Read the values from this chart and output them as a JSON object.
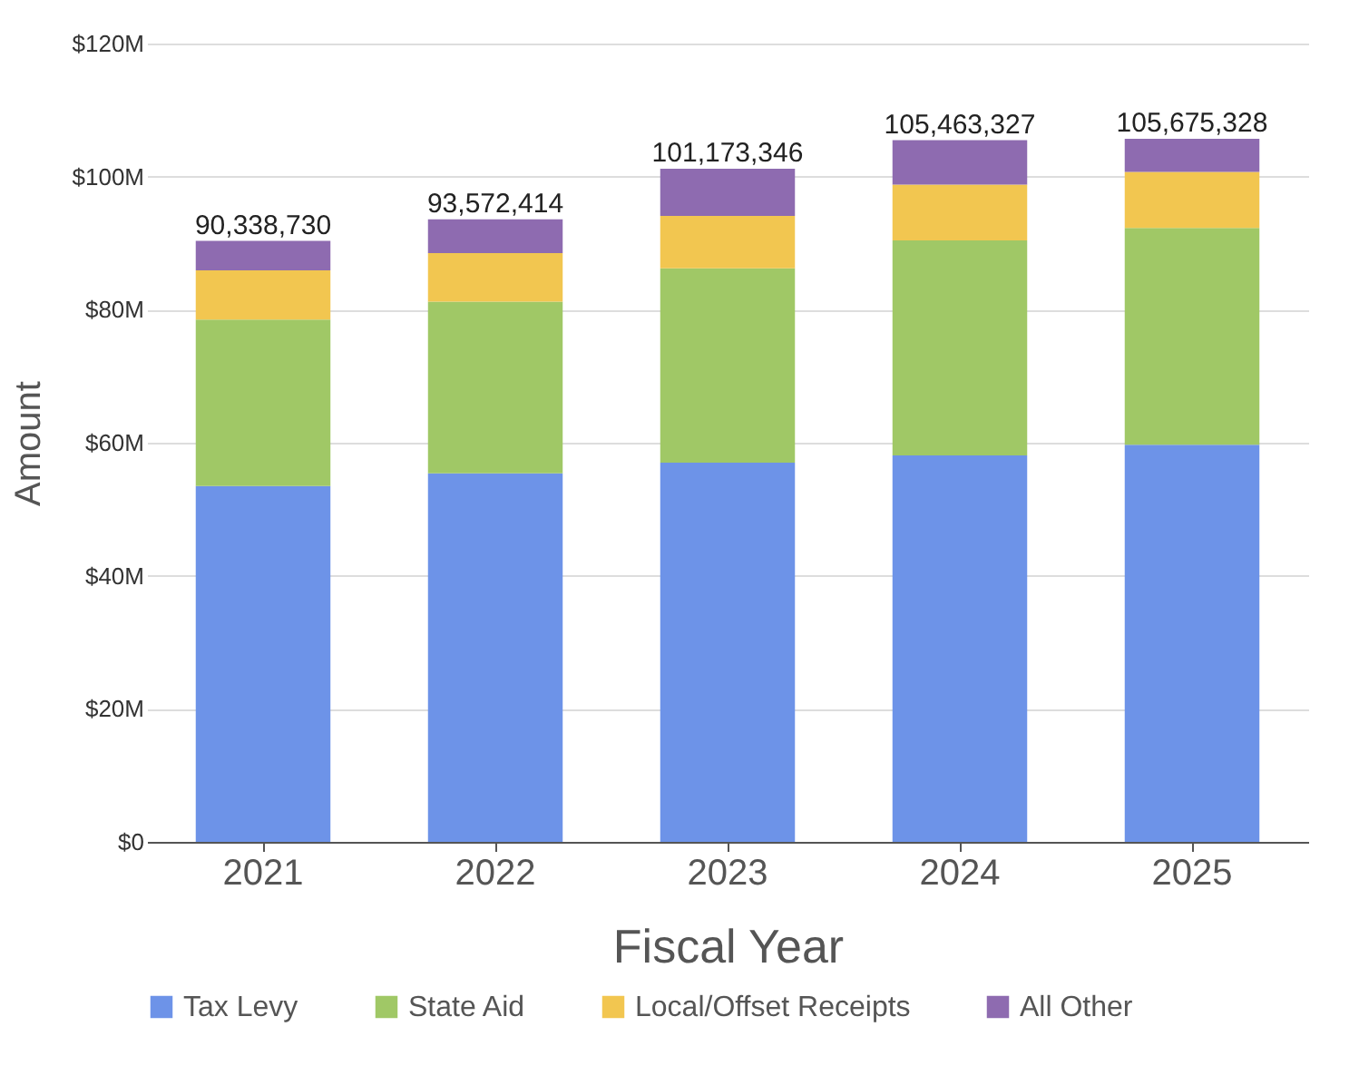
{
  "chart_data": {
    "type": "bar",
    "stacked": true,
    "xlabel": "Fiscal Year",
    "ylabel": "Amount",
    "categories": [
      "2021",
      "2022",
      "2023",
      "2024",
      "2025"
    ],
    "series": [
      {
        "name": "Tax Levy",
        "color": "#6d93e8",
        "values": [
          53500000,
          55400000,
          57000000,
          58100000,
          59700000
        ]
      },
      {
        "name": "State Aid",
        "color": "#a0c866",
        "values": [
          25000000,
          25800000,
          29200000,
          32300000,
          32600000
        ]
      },
      {
        "name": "Local/Offset Receipts",
        "color": "#f2c650",
        "values": [
          7400000,
          7300000,
          7900000,
          8400000,
          8400000
        ]
      },
      {
        "name": "All Other",
        "color": "#8e6bb0",
        "values": [
          4438730,
          5072414,
          7073346,
          6663327,
          4975328
        ]
      }
    ],
    "totals": [
      "90,338,730",
      "93,572,414",
      "101,173,346",
      "105,463,327",
      "105,675,328"
    ],
    "ylim": [
      0,
      120000000
    ],
    "yticks": [
      {
        "value": 0,
        "label": "$0"
      },
      {
        "value": 20000000,
        "label": "$20M"
      },
      {
        "value": 40000000,
        "label": "$40M"
      },
      {
        "value": 60000000,
        "label": "$60M"
      },
      {
        "value": 80000000,
        "label": "$80M"
      },
      {
        "value": 100000000,
        "label": "$100M"
      },
      {
        "value": 120000000,
        "label": "$120M"
      }
    ],
    "grid": "y",
    "legend": "bottom"
  }
}
